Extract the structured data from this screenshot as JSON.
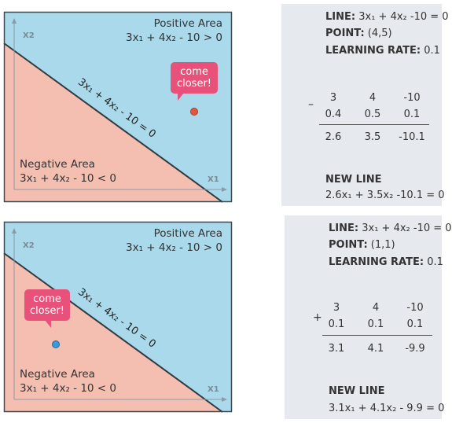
{
  "top": {
    "positive_title": "Positive Area",
    "positive_eq": "3x₁ + 4x₂ - 10 > 0",
    "negative_title": "Negative Area",
    "negative_eq": "3x₁ + 4x₂ - 10 < 0",
    "line_label": "3x₁ + 4x₂ - 10 = 0",
    "bubble_line1": "come",
    "bubble_line2": "closer!",
    "x_axis": "X1",
    "y_axis": "X2",
    "point_color": "#e2583e"
  },
  "bottom": {
    "positive_title": "Positive Area",
    "positive_eq": "3x₁ + 4x₂ - 10 > 0",
    "negative_title": "Negative Area",
    "negative_eq": "3x₁ + 4x₂ - 10 < 0",
    "line_label": "3x₁ + 4x₂ - 10 = 0",
    "bubble_line1": "come",
    "bubble_line2": "closer!",
    "x_axis": "X1",
    "y_axis": "X2",
    "point_color": "#3a9ad9"
  },
  "colors": {
    "positive": "#a9d9ea",
    "negative": "#f4bfb0",
    "bubble": "#e7517a",
    "panel": "#e6eaee"
  },
  "panel1": {
    "line_key": "LINE:",
    "line_val": "3x₁ + 4x₂ -10 = 0",
    "point_key": "POINT:",
    "point_val": "(4,5)",
    "lr_key": "LEARNING RATE:",
    "lr_val": "0.1",
    "operator": "–",
    "row1": [
      "3",
      "4",
      "-10"
    ],
    "row2": [
      "0.4",
      "0.5",
      "0.1"
    ],
    "row3": [
      "2.6",
      "3.5",
      "-10.1"
    ],
    "new_line_title": "NEW LINE",
    "new_line_eq": "2.6x₁ + 3.5x₂ -10.1 = 0"
  },
  "panel2": {
    "line_key": "LINE:",
    "line_val": "3x₁ + 4x₂ -10 = 0",
    "point_key": "POINT:",
    "point_val": "(1,1)",
    "lr_key": "LEARNING RATE:",
    "lr_val": "0.1",
    "operator": "+",
    "row1": [
      "3",
      "4",
      "-10"
    ],
    "row2": [
      "0.1",
      "0.1",
      "0.1"
    ],
    "row3": [
      "3.1",
      "4.1",
      "-9.9"
    ],
    "new_line_title": "NEW LINE",
    "new_line_eq": "3.1x₁ + 4.1x₂ - 9.9 = 0"
  }
}
